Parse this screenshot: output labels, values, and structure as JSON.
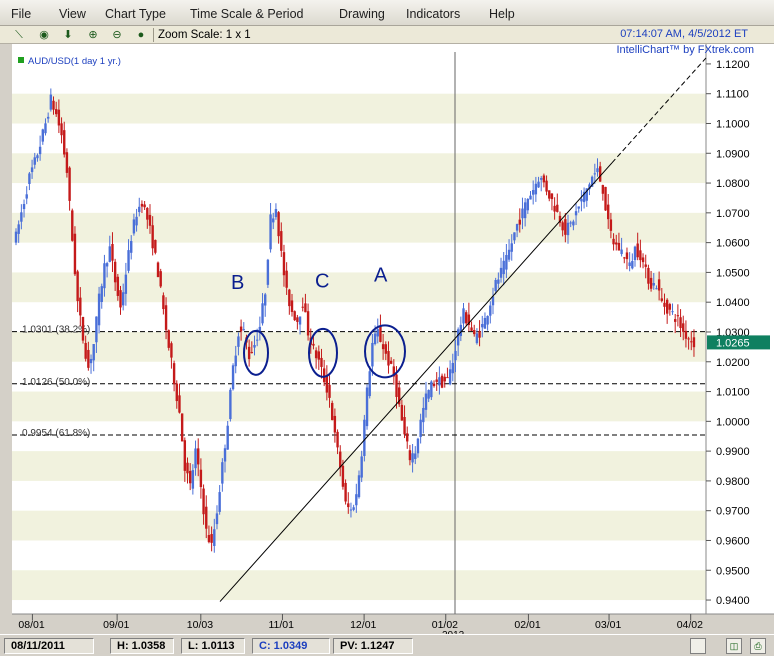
{
  "menu": [
    "File",
    "View",
    "Chart Type",
    "Time Scale & Period",
    "Drawing",
    "Indicators",
    "Help"
  ],
  "toolbar": {
    "tools": [
      "pen-tool-icon",
      "crosshair-icon",
      "down-arrow-icon",
      "zoom-in-icon",
      "zoom-out-icon",
      "color-icon"
    ],
    "zoom_label": "Zoom Scale: 1 x 1"
  },
  "header": {
    "timestamp": "07:14:07 AM, 4/5/2012 ET",
    "brand": "IntelliChart™ by FXtrek.com"
  },
  "chart_data": {
    "type": "candlestick",
    "legend": "AUD/USD(1 day  1 yr.)",
    "y_ticks": [
      "0.9400",
      "0.9500",
      "0.9600",
      "0.9700",
      "0.9800",
      "0.9900",
      "1.0000",
      "1.0100",
      "1.0200",
      "1.0300",
      "1.0400",
      "1.0500",
      "1.0600",
      "1.0700",
      "1.0800",
      "1.0900",
      "1.1000",
      "1.1100",
      "1.1200"
    ],
    "ylim": [
      0.938,
      1.124
    ],
    "x_ticks": [
      "08/01",
      "09/01",
      "10/03",
      "11/01",
      "12/01",
      "01/02",
      "02/01",
      "03/01",
      "04/02"
    ],
    "x_year": "2012",
    "current_price": "1.0265",
    "current_value": 1.0265,
    "fib_levels": [
      {
        "value": 1.0301,
        "label": "1.0301 (38.2%)"
      },
      {
        "value": 1.0126,
        "label": "1.0126 (50.0%)"
      },
      {
        "value": 0.9954,
        "label": "0.9954 (61.8%)"
      }
    ],
    "annotations": [
      "B",
      "C",
      "A"
    ],
    "path": [
      [
        0,
        1.062
      ],
      [
        3,
        1.074
      ],
      [
        5,
        1.082
      ],
      [
        7,
        1.087
      ],
      [
        9,
        1.093
      ],
      [
        11,
        1.1
      ],
      [
        13,
        1.108
      ],
      [
        15,
        1.103
      ],
      [
        17,
        1.096
      ],
      [
        19,
        1.084
      ],
      [
        21,
        1.061
      ],
      [
        23,
        1.04
      ],
      [
        25,
        1.028
      ],
      [
        27,
        1.018
      ],
      [
        29,
        1.026
      ],
      [
        31,
        1.041
      ],
      [
        33,
        1.052
      ],
      [
        35,
        1.058
      ],
      [
        37,
        1.047
      ],
      [
        39,
        1.038
      ],
      [
        41,
        1.05
      ],
      [
        43,
        1.062
      ],
      [
        45,
        1.07
      ],
      [
        47,
        1.074
      ],
      [
        49,
        1.068
      ],
      [
        51,
        1.06
      ],
      [
        53,
        1.05
      ],
      [
        55,
        1.037
      ],
      [
        57,
        1.025
      ],
      [
        59,
        1.014
      ],
      [
        61,
        1.003
      ],
      [
        63,
        0.985
      ],
      [
        65,
        0.978
      ],
      [
        67,
        0.99
      ],
      [
        69,
        0.978
      ],
      [
        71,
        0.963
      ],
      [
        73,
        0.958
      ],
      [
        75,
        0.97
      ],
      [
        77,
        0.985
      ],
      [
        79,
        1.0
      ],
      [
        81,
        1.018
      ],
      [
        83,
        1.03
      ],
      [
        85,
        1.03
      ],
      [
        87,
        1.022
      ],
      [
        89,
        1.026
      ],
      [
        91,
        1.032
      ],
      [
        93,
        1.044
      ],
      [
        95,
        1.068
      ],
      [
        97,
        1.072
      ],
      [
        99,
        1.056
      ],
      [
        101,
        1.043
      ],
      [
        103,
        1.037
      ],
      [
        105,
        1.034
      ],
      [
        107,
        1.04
      ],
      [
        109,
        1.03
      ],
      [
        111,
        1.024
      ],
      [
        113,
        1.02
      ],
      [
        115,
        1.014
      ],
      [
        117,
        1.008
      ],
      [
        119,
        0.995
      ],
      [
        121,
        0.985
      ],
      [
        123,
        0.972
      ],
      [
        125,
        0.97
      ],
      [
        127,
        0.975
      ],
      [
        129,
        0.99
      ],
      [
        131,
        1.01
      ],
      [
        133,
        1.026
      ],
      [
        135,
        1.03
      ],
      [
        137,
        1.025
      ],
      [
        139,
        1.02
      ],
      [
        141,
        1.015
      ],
      [
        143,
        1.005
      ],
      [
        145,
        0.995
      ],
      [
        147,
        0.988
      ],
      [
        149,
        0.99
      ],
      [
        151,
        1.0
      ],
      [
        153,
        1.008
      ],
      [
        155,
        1.012
      ],
      [
        157,
        1.014
      ],
      [
        159,
        1.013
      ],
      [
        161,
        1.014
      ],
      [
        163,
        1.02
      ],
      [
        165,
        1.03
      ],
      [
        167,
        1.036
      ],
      [
        169,
        1.033
      ],
      [
        171,
        1.028
      ],
      [
        173,
        1.03
      ],
      [
        175,
        1.034
      ],
      [
        177,
        1.04
      ],
      [
        179,
        1.046
      ],
      [
        181,
        1.05
      ],
      [
        183,
        1.054
      ],
      [
        185,
        1.06
      ],
      [
        187,
        1.066
      ],
      [
        189,
        1.07
      ],
      [
        191,
        1.075
      ],
      [
        193,
        1.078
      ],
      [
        195,
        1.082
      ],
      [
        197,
        1.08
      ],
      [
        199,
        1.076
      ],
      [
        201,
        1.072
      ],
      [
        203,
        1.068
      ],
      [
        205,
        1.064
      ],
      [
        207,
        1.066
      ],
      [
        209,
        1.07
      ],
      [
        211,
        1.074
      ],
      [
        213,
        1.078
      ],
      [
        215,
        1.082
      ],
      [
        217,
        1.084
      ],
      [
        219,
        1.078
      ],
      [
        221,
        1.066
      ],
      [
        223,
        1.06
      ],
      [
        225,
        1.058
      ],
      [
        227,
        1.056
      ],
      [
        229,
        1.052
      ],
      [
        231,
        1.058
      ],
      [
        233,
        1.056
      ],
      [
        235,
        1.05
      ],
      [
        237,
        1.046
      ],
      [
        239,
        1.046
      ],
      [
        241,
        1.04
      ],
      [
        243,
        1.038
      ],
      [
        245,
        1.036
      ],
      [
        247,
        1.034
      ],
      [
        249,
        1.03
      ],
      [
        251,
        1.028
      ],
      [
        253,
        1.0265
      ]
    ]
  },
  "status": {
    "date": "08/11/2011",
    "high": "H: 1.0358",
    "low": "L: 1.0113",
    "close": "C: 1.0349",
    "pv": "PV: 1.1247"
  }
}
